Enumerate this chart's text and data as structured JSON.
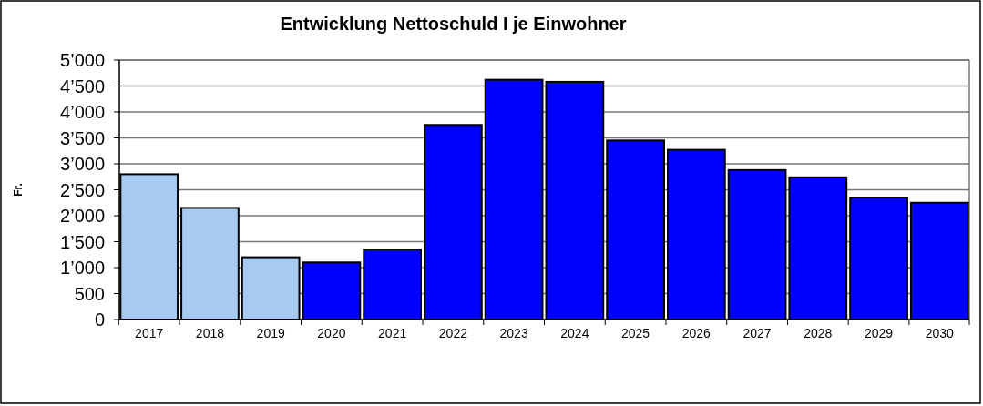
{
  "chart_data": {
    "type": "bar",
    "title": "Entwicklung Nettoschuld I je Einwohner",
    "ylabel": "Fr.",
    "categories": [
      "2017",
      "2018",
      "2019",
      "2020",
      "2021",
      "2022",
      "2023",
      "2024",
      "2025",
      "2026",
      "2027",
      "2028",
      "2029",
      "2030"
    ],
    "values": [
      2800,
      2150,
      1200,
      1100,
      1350,
      3750,
      4620,
      4580,
      3450,
      3270,
      2880,
      2740,
      2350,
      2250
    ],
    "colors": [
      "#a6caf0",
      "#a6caf0",
      "#a6caf0",
      "#0000ff",
      "#0000ff",
      "#0000ff",
      "#0000ff",
      "#0000ff",
      "#0000ff",
      "#0000ff",
      "#0000ff",
      "#0000ff",
      "#0000ff",
      "#0000ff"
    ],
    "ylim": [
      0,
      5000
    ],
    "yticks": [
      {
        "value": 0,
        "label": "0"
      },
      {
        "value": 500,
        "label": "500"
      },
      {
        "value": 1000,
        "label": "1’000"
      },
      {
        "value": 1500,
        "label": "1’500"
      },
      {
        "value": 2000,
        "label": "2’000"
      },
      {
        "value": 2500,
        "label": "2’500"
      },
      {
        "value": 3000,
        "label": "3’000"
      },
      {
        "value": 3500,
        "label": "3’500"
      },
      {
        "value": 4000,
        "label": "4’000"
      },
      {
        "value": 4500,
        "label": "4’500"
      },
      {
        "value": 5000,
        "label": "5’000"
      }
    ],
    "grid": "y"
  }
}
